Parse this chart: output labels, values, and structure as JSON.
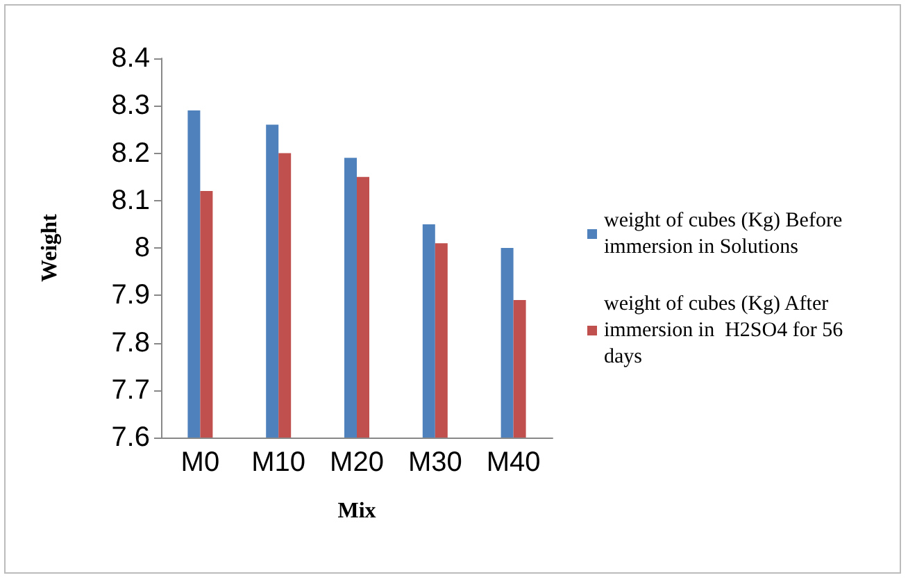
{
  "chart_data": {
    "type": "bar",
    "xlabel": "Mix",
    "ylabel": "Weight",
    "categories": [
      "M0",
      "M10",
      "M20",
      "M30",
      "M40"
    ],
    "series": [
      {
        "name": "weight of cubes (Kg) Before immersion in Solutions",
        "color": "#4f81bd",
        "values": [
          8.29,
          8.26,
          8.19,
          8.05,
          8.0
        ]
      },
      {
        "name": "weight of cubes (Kg) After immersion in  H2SO4 for 56 days",
        "color": "#c0504d",
        "values": [
          8.12,
          8.2,
          8.15,
          8.01,
          7.89
        ]
      }
    ],
    "ylim": [
      7.6,
      8.4
    ],
    "yticks": [
      7.6,
      7.7,
      7.8,
      7.9,
      8,
      8.1,
      8.2,
      8.3,
      8.4
    ],
    "grid": false,
    "legend": "right"
  }
}
